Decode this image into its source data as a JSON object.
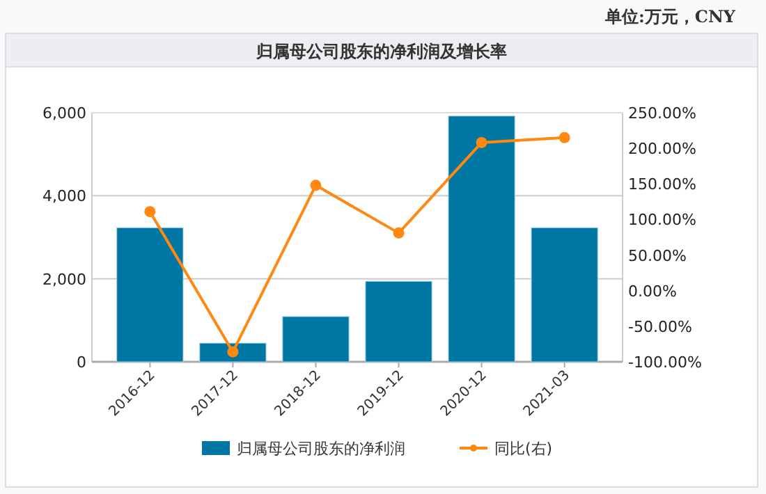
{
  "chart_data": {
    "type": "bar",
    "title": "归属母公司股东的净利润及增长率",
    "subtitle": "单位:万元，CNY",
    "categories": [
      "2016-12",
      "2017-12",
      "2018-12",
      "2019-12",
      "2020-12",
      "2021-03"
    ],
    "series": [
      {
        "name": "归属母公司股东的净利润",
        "color": "#0077a3",
        "values": [
          3230,
          450,
          1090,
          1940,
          5920,
          3230
        ]
      },
      {
        "name": "同比(右)",
        "type": "line",
        "axis": "y2",
        "color": "#ff8811",
        "values": [
          111,
          -86,
          148,
          81,
          208,
          215
        ]
      }
    ],
    "ylim": [
      0,
      6000
    ],
    "yticks": [
      0,
      {
        "value": 2000,
        "label": "2,000"
      },
      {
        "value": 4000,
        "label": "4,000"
      },
      {
        "value": 6000,
        "label": "6,000"
      }
    ],
    "y2lim": [
      -100,
      250
    ],
    "y2ticks": [
      {
        "value": -100,
        "label": "-100.00%"
      },
      {
        "value": -50,
        "label": "-50.00%"
      },
      {
        "value": 0,
        "label": "0.00%"
      },
      {
        "value": 50,
        "label": "50.00%"
      },
      {
        "value": 100,
        "label": "100.00%"
      },
      {
        "value": 150,
        "label": "150.00%"
      },
      {
        "value": 200,
        "label": "200.00%"
      },
      {
        "value": 250,
        "label": "250.00%"
      }
    ],
    "grid": "y",
    "legend": "bottom",
    "marker": "circle"
  }
}
